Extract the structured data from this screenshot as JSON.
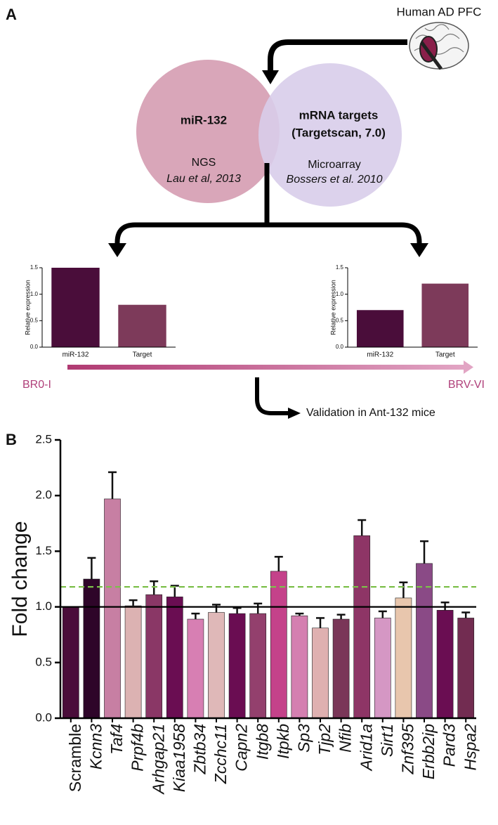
{
  "diagram": {
    "panel_a_label": "A",
    "source": "Human AD PFC",
    "left_circle": {
      "title": "miR-132",
      "method": "NGS",
      "reference": "Lau et al, 2013"
    },
    "right_circle": {
      "title_line1": "mRNA targets",
      "title_line2": "(Targetscan, 7.0)",
      "method": "Microarray",
      "reference": "Bossers et al. 2010"
    },
    "stage_start": "BR0-I",
    "stage_end": "BRV-VI",
    "validation": "Validation in Ant-132 mice",
    "panel_b_label": "B"
  },
  "chart_data": [
    {
      "type": "bar",
      "y_label": "Relative expression",
      "categories": [
        "miR-132",
        "Target"
      ],
      "values": [
        1.5,
        0.8
      ],
      "colors": [
        "#4a0d3a",
        "#7d3a5a"
      ],
      "ylim": [
        0,
        1.5
      ],
      "yticks": [
        {
          "value": 0,
          "label": "0.0"
        },
        0.5,
        {
          "value": 1,
          "label": "1.0"
        },
        1.5
      ]
    },
    {
      "type": "bar",
      "y_label": "Relative expression",
      "categories": [
        "miR-132",
        "Target"
      ],
      "values": [
        0.7,
        1.2
      ],
      "colors": [
        "#4a0d3a",
        "#7d3a5a"
      ],
      "ylim": [
        0,
        1.5
      ],
      "yticks": [
        {
          "value": 0,
          "label": "0.0"
        },
        0.5,
        {
          "value": 1,
          "label": "1.0"
        },
        1.5
      ]
    },
    {
      "type": "bar",
      "y_label": "Fold change",
      "categories": [
        "Scramble",
        "Kcnn3",
        "Taf4",
        "Prpf4b",
        "Arhgap21",
        "Kiaa1958",
        "Zbtb34",
        "Zcchc11",
        "Capn2",
        "Itgb8",
        "Itpkb",
        "Sp3",
        "Tjp2",
        "Nfib",
        "Arid1a",
        "Sirt1",
        "Znf395",
        "Erbb2ip",
        "Pard3",
        "Hspa2"
      ],
      "values": [
        1.0,
        1.25,
        1.97,
        1.01,
        1.11,
        1.09,
        0.89,
        0.95,
        0.94,
        0.94,
        1.32,
        0.92,
        0.81,
        0.89,
        1.64,
        0.9,
        1.08,
        1.39,
        0.97,
        0.9
      ],
      "errors": [
        null,
        0.19,
        0.24,
        0.05,
        0.12,
        0.1,
        0.05,
        0.07,
        0.05,
        0.09,
        0.13,
        0.02,
        0.09,
        0.04,
        0.14,
        0.06,
        0.14,
        0.2,
        0.07,
        0.05
      ],
      "colors": [
        "#4a0d3a",
        "#2e0529",
        "#c77fa3",
        "#dcb2b2",
        "#8a3766",
        "#6a0d52",
        "#d77fb3",
        "#dfb8b8",
        "#6a0d52",
        "#93406d",
        "#c4428a",
        "#d47fb0",
        "#dfb0b0",
        "#7a3658",
        "#8e3566",
        "#d597c4",
        "#e8c6ad",
        "#8a4a86",
        "#6a0d52",
        "#722c51"
      ],
      "ylim": [
        0,
        2.5
      ],
      "yticks": [
        {
          "value": 0,
          "label": "0.0"
        },
        0.5,
        {
          "value": 1,
          "label": "1.0"
        },
        1.5,
        {
          "value": 2,
          "label": "2.0"
        },
        2.5
      ],
      "reference_lines": [
        {
          "value": 1.0,
          "color": "#000000",
          "style": "solid"
        },
        {
          "value": 1.18,
          "color": "#7cbf4a",
          "style": "dashed"
        }
      ]
    }
  ]
}
